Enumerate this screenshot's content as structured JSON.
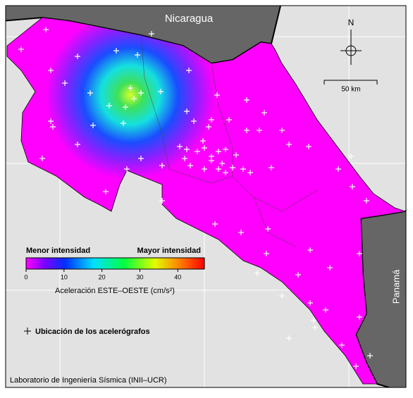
{
  "map": {
    "countries": {
      "north": "Nicaragua",
      "south": "Panamá"
    },
    "north_arrow": "N",
    "scale_bar": "50 km",
    "colorbar": {
      "low_label": "Menor intensidad",
      "high_label": "Mayor intensidad",
      "lim": [
        0,
        47
      ],
      "ticks": [
        0,
        10,
        20,
        30,
        40
      ],
      "label": "Aceleración ESTE–OESTE (cm/s²)"
    },
    "legend": "Ubicación de los acelerógrafos",
    "credit": "Laboratorio de Ingeniería Sísmica (INII–UCR)"
  }
}
